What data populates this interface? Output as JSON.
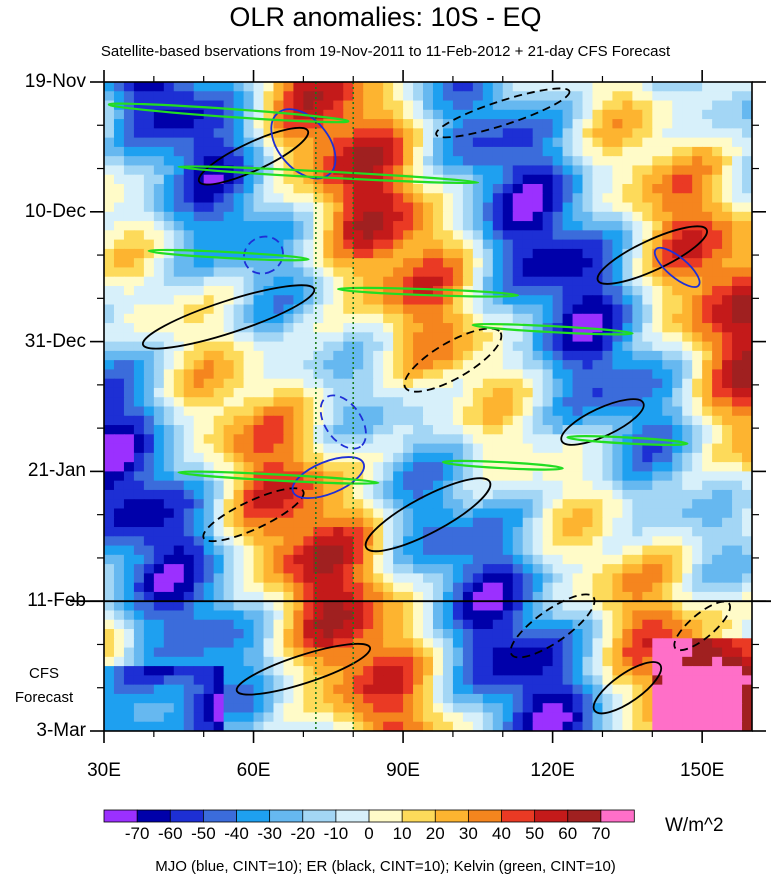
{
  "title": "OLR anomalies: 10S - EQ",
  "subtitle": "Satellite-based bservations from 19-Nov-2011 to 11-Feb-2012 + 21-day CFS Forecast",
  "footer": "MJO (blue, CINT=10); ER (black, CINT=10); Kelvin (green, CINT=10)",
  "forecast_label": [
    "CFS",
    "Forecast"
  ],
  "units": "W/m^2",
  "chart_data": {
    "type": "heatmap",
    "title": "OLR anomalies: 10S - EQ",
    "x_axis": {
      "label": "",
      "range": [
        30,
        160
      ],
      "ticks": [
        {
          "value": 30,
          "label": "30E"
        },
        {
          "value": 60,
          "label": "60E"
        },
        {
          "value": 90,
          "label": "90E"
        },
        {
          "value": 120,
          "label": "120E"
        },
        {
          "value": 150,
          "label": "150E"
        }
      ]
    },
    "y_axis": {
      "label": "",
      "range": [
        "19-Nov-2011",
        "3-Mar-2012"
      ],
      "inverted": true,
      "ticks": [
        {
          "day": 0,
          "label": "19-Nov"
        },
        {
          "day": 21,
          "label": "10-Dec"
        },
        {
          "day": 42,
          "label": "31-Dec"
        },
        {
          "day": 63,
          "label": "21-Jan"
        },
        {
          "day": 84,
          "label": "11-Feb"
        },
        {
          "day": 105,
          "label": "3-Mar"
        }
      ]
    },
    "observation_end": "11-Feb",
    "forecast_days": 21,
    "reference_longitudes": [
      72.5,
      80
    ],
    "colorbar": {
      "levels": [
        -70,
        -60,
        -50,
        -40,
        -30,
        -20,
        -10,
        0,
        10,
        20,
        30,
        40,
        50,
        60,
        70
      ],
      "labels": [
        "-70",
        "-60",
        "-50",
        "-40",
        "-30",
        "-20",
        "-10",
        "0",
        "10",
        "20",
        "30",
        "40",
        "50",
        "60",
        "70"
      ],
      "colors": [
        "#9b30ff",
        "#0000aa",
        "#1d2fd4",
        "#3b6cdb",
        "#1ea0f0",
        "#66b8f0",
        "#a3d6f5",
        "#d7f0fa",
        "#fffbc8",
        "#fdda5a",
        "#fdb430",
        "#f5851e",
        "#ea3a24",
        "#c41a1a",
        "#a02020",
        "#ff6fc8"
      ]
    },
    "contours": [
      {
        "name": "MJO",
        "color": "#1f2fd6",
        "cint": 10
      },
      {
        "name": "ER",
        "color": "#000000",
        "cint": 10
      },
      {
        "name": "Kelvin",
        "color": "#22dd22",
        "cint": 10
      }
    ]
  }
}
